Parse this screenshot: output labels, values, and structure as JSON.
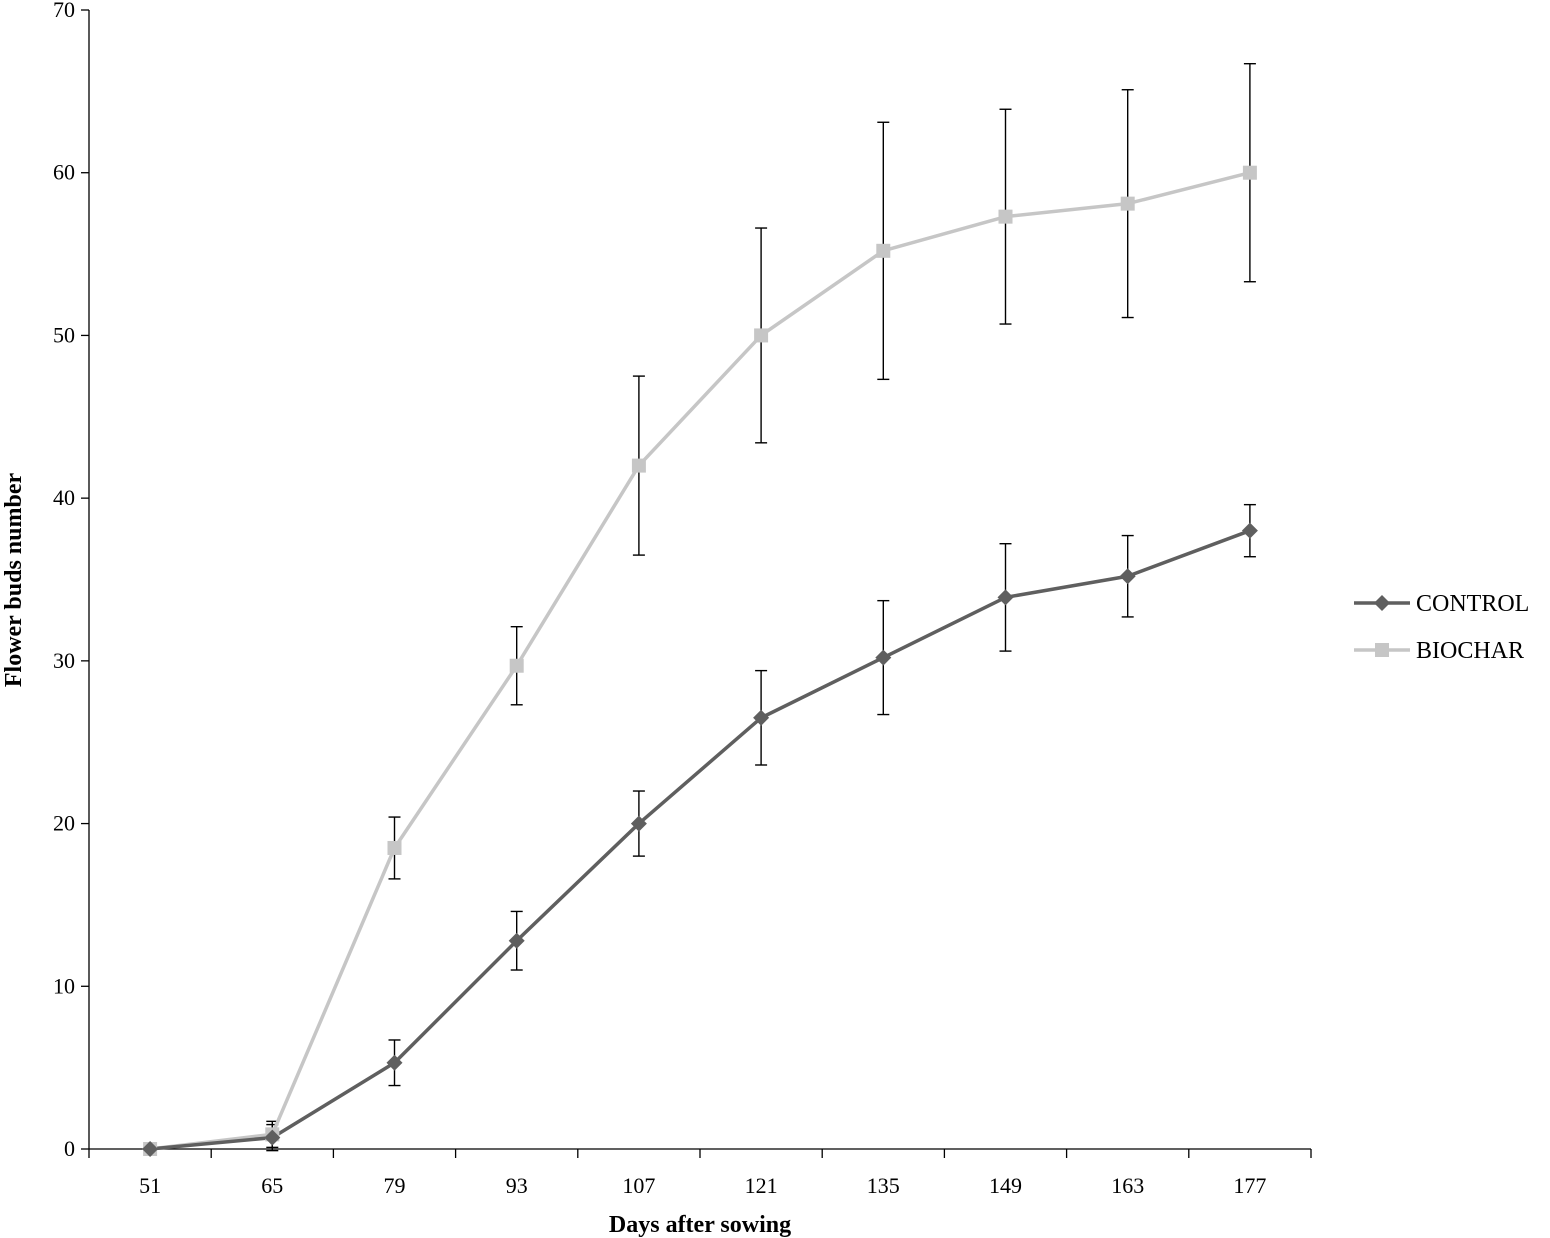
{
  "chart_data": {
    "type": "line",
    "xlabel": "Days after sowing",
    "ylabel": "Flower buds number",
    "categories": [
      "51",
      "65",
      "79",
      "93",
      "107",
      "121",
      "135",
      "149",
      "163",
      "177"
    ],
    "ylim": [
      0,
      70
    ],
    "yticks": [
      0,
      10,
      20,
      30,
      40,
      50,
      60,
      70
    ],
    "grid": false,
    "legend_position": "right",
    "series": [
      {
        "name": "CONTROL",
        "marker": "diamond",
        "color": "#5f5f5f",
        "values": [
          0,
          0.7,
          5.3,
          12.8,
          20.0,
          26.5,
          30.2,
          33.9,
          35.2,
          38.0
        ],
        "error": [
          0,
          0.8,
          1.4,
          1.8,
          2.0,
          2.9,
          3.5,
          3.3,
          2.5,
          1.6
        ]
      },
      {
        "name": "BIOCHAR",
        "marker": "square",
        "color": "#c6c6c6",
        "values": [
          0,
          0.9,
          18.5,
          29.7,
          42.0,
          50.0,
          55.2,
          57.3,
          58.1,
          60.0
        ],
        "error": [
          0,
          0.8,
          1.9,
          2.4,
          5.5,
          6.6,
          7.9,
          6.6,
          7.0,
          6.7
        ]
      }
    ]
  }
}
